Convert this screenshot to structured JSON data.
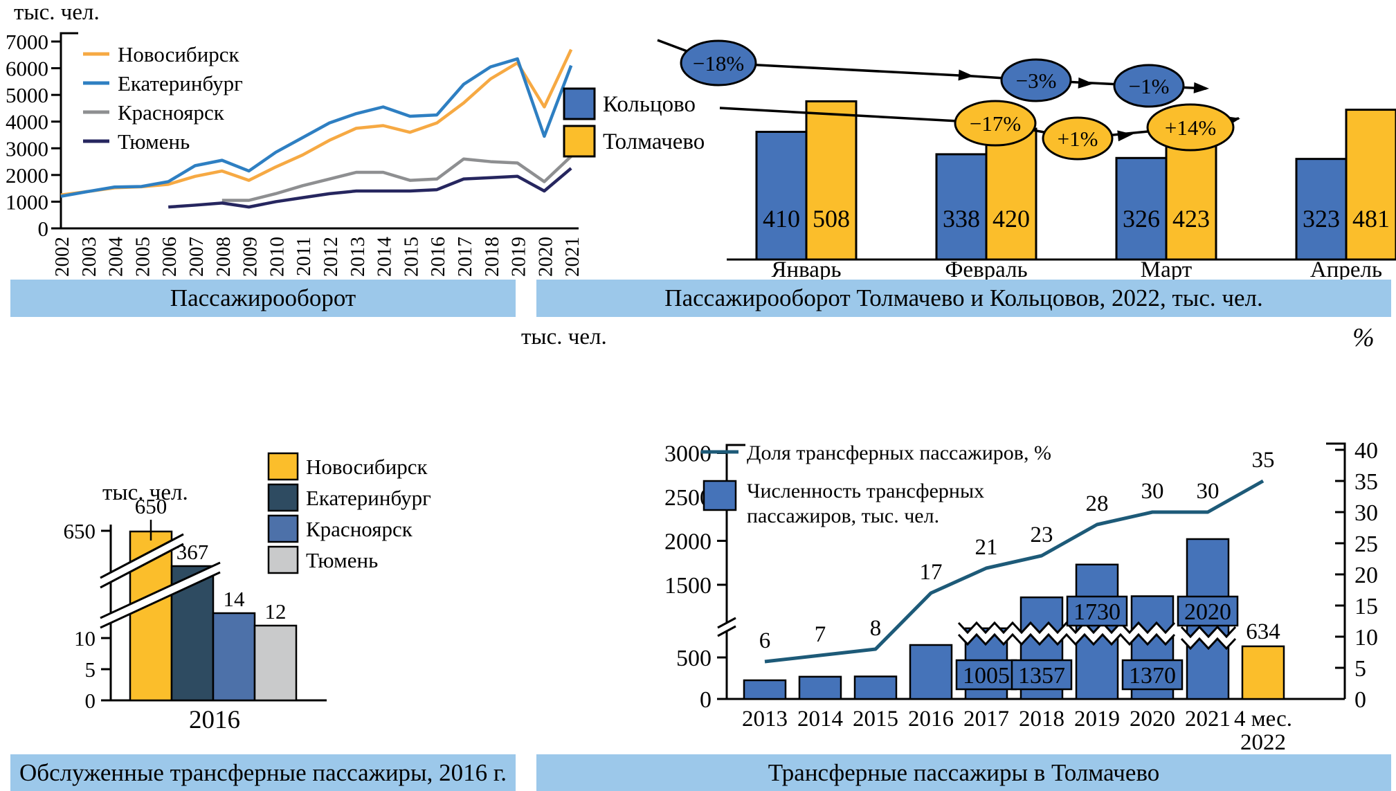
{
  "caption_bg": "#9CC8EA",
  "captions": [
    {
      "text": "Пассажирооборот"
    },
    {
      "text": "Пассажирооборот Толмачево и Кольцовов, 2022, тыс. чел."
    },
    {
      "text": "Обслуженные трансферные пассажиры, 2016 г."
    },
    {
      "text": "Трансферные пассажиры в Толмачево"
    }
  ],
  "chart_data": [
    {
      "type": "line",
      "panel": "top-left",
      "unit_label": "тыс. чел.",
      "ylim": [
        0,
        7000
      ],
      "yticks": [
        0,
        1000,
        2000,
        3000,
        4000,
        5000,
        6000,
        7000
      ],
      "x_years": [
        2002,
        2003,
        2004,
        2005,
        2006,
        2007,
        2008,
        2009,
        2010,
        2011,
        2012,
        2013,
        2014,
        2015,
        2016,
        2017,
        2018,
        2019,
        2020,
        2021
      ],
      "series": [
        {
          "name": "Новосибирск",
          "color": "#F6A943",
          "start_year": 2002,
          "values": [
            1250,
            1380,
            1520,
            1560,
            1650,
            1950,
            2150,
            1800,
            2300,
            2750,
            3300,
            3750,
            3850,
            3600,
            3950,
            4700,
            5600,
            6200,
            4550,
            6700
          ]
        },
        {
          "name": "Екатеринбург",
          "color": "#2E7FC2",
          "start_year": 2002,
          "values": [
            1200,
            1380,
            1550,
            1570,
            1750,
            2350,
            2550,
            2150,
            2850,
            3400,
            3950,
            4300,
            4550,
            4200,
            4250,
            5400,
            6050,
            6350,
            3450,
            6100
          ]
        },
        {
          "name": "Красноярск",
          "color": "#8E8F91",
          "start_year": 2008,
          "values": [
            1050,
            1050,
            1300,
            1600,
            1850,
            2100,
            2100,
            1800,
            1850,
            2600,
            2500,
            2450,
            1750,
            2700
          ]
        },
        {
          "name": "Тюмень",
          "color": "#26265F",
          "start_year": 2006,
          "values": [
            800,
            870,
            950,
            800,
            1000,
            1150,
            1300,
            1400,
            1400,
            1400,
            1450,
            1850,
            1900,
            1950,
            1400,
            2250
          ]
        }
      ]
    },
    {
      "type": "bar",
      "panel": "top-right",
      "categories": [
        "Январь",
        "Февраль",
        "Март",
        "Апрель"
      ],
      "series": [
        {
          "name": "Кольцово",
          "color": "#4573B9",
          "value_text_color": "#ffffff",
          "values": [
            410,
            338,
            326,
            323
          ],
          "change_annotations": [
            "−18%",
            "−3%",
            "−1%"
          ]
        },
        {
          "name": "Толмачево",
          "color": "#FBBE2B",
          "value_text_color": "#000000",
          "values": [
            508,
            420,
            423,
            481
          ],
          "change_annotations": [
            "−17%",
            "+1%",
            "+14%"
          ]
        }
      ]
    },
    {
      "type": "bar",
      "panel": "bottom-left",
      "unit_label": "тыс. чел.",
      "xlabel": "2016",
      "yticks_lower": [
        0,
        5,
        10
      ],
      "ytick_upper": 650,
      "axis_break": true,
      "categories": [
        "Новосибирск",
        "Екатеринбург",
        "Красноярск",
        "Тюмень"
      ],
      "values": [
        650,
        367,
        14,
        12
      ],
      "bar_colors": [
        "#FBBE2B",
        "#2E4B61",
        "#4D71A9",
        "#C9CACB"
      ]
    },
    {
      "type": "combo",
      "panel": "bottom-right",
      "left_axis": {
        "label": "тыс. чел.",
        "ticks": [
          0,
          500,
          1500,
          2000,
          2500,
          3000
        ],
        "break_between": [
          500,
          1500
        ]
      },
      "right_axis": {
        "label": "%",
        "ticks": [
          0,
          5,
          10,
          15,
          20,
          25,
          30,
          35,
          40
        ]
      },
      "categories": [
        "2013",
        "2014",
        "2015",
        "2016",
        "2017",
        "2018",
        "2019",
        "2020",
        "2021",
        "4 мес.\n2022"
      ],
      "bars": {
        "name": "Численность трансферных пассажиров, тыс. чел.",
        "legend_lines": [
          "Численность трансферных",
          "пассажиров, тыс. чел."
        ],
        "color": "#4573B9",
        "last_bar_color": "#FBBE2B",
        "values": [
          225,
          268,
          271,
          650,
          1005,
          1357,
          1730,
          1370,
          2020,
          634
        ],
        "broken_bars_from": 1005
      },
      "line": {
        "name": "Доля трансферных пассажиров, %",
        "color": "#1D5A78",
        "values": [
          6,
          7,
          8,
          17,
          21,
          23,
          28,
          30,
          30,
          35
        ]
      }
    }
  ]
}
